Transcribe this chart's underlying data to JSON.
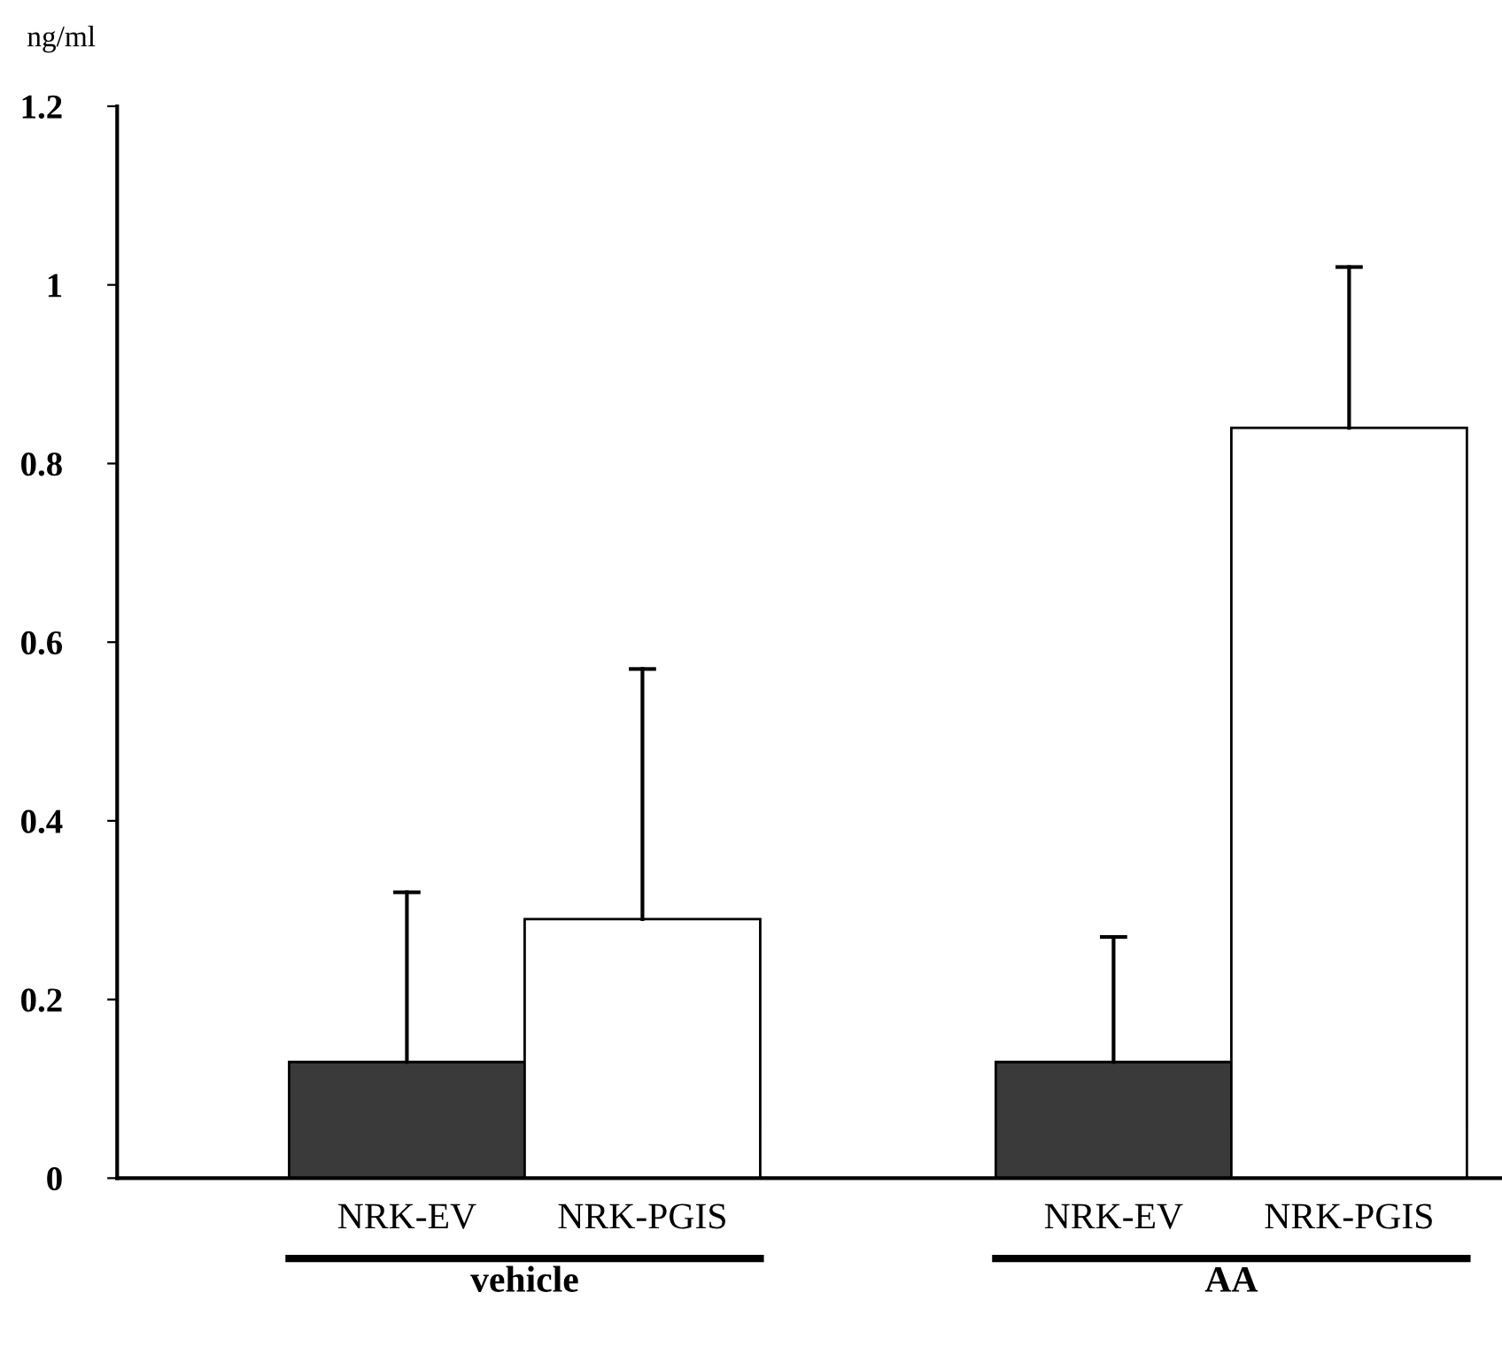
{
  "chart_data": {
    "type": "bar",
    "ylabel": "ng/ml",
    "categories": [
      "NRK-EV",
      "NRK-PGIS",
      null,
      "NRK-EV",
      "NRK-PGIS"
    ],
    "values": [
      0.13,
      0.29,
      null,
      0.13,
      0.84
    ],
    "errors": [
      [
        0.13,
        0.32
      ],
      [
        0.29,
        0.57
      ],
      null,
      [
        0.13,
        0.27
      ],
      [
        0.84,
        1.02
      ]
    ],
    "colors": [
      "#3a3a3a",
      "#ffffff",
      null,
      "#3a3a3a",
      "#ffffff"
    ],
    "ylim": [
      0,
      1.2
    ],
    "yticks": [
      0,
      0.2,
      0.4,
      0.6,
      0.8,
      1,
      1.2
    ],
    "grid": false,
    "legend": false,
    "annotations": [
      "vehicle",
      "AA"
    ]
  }
}
